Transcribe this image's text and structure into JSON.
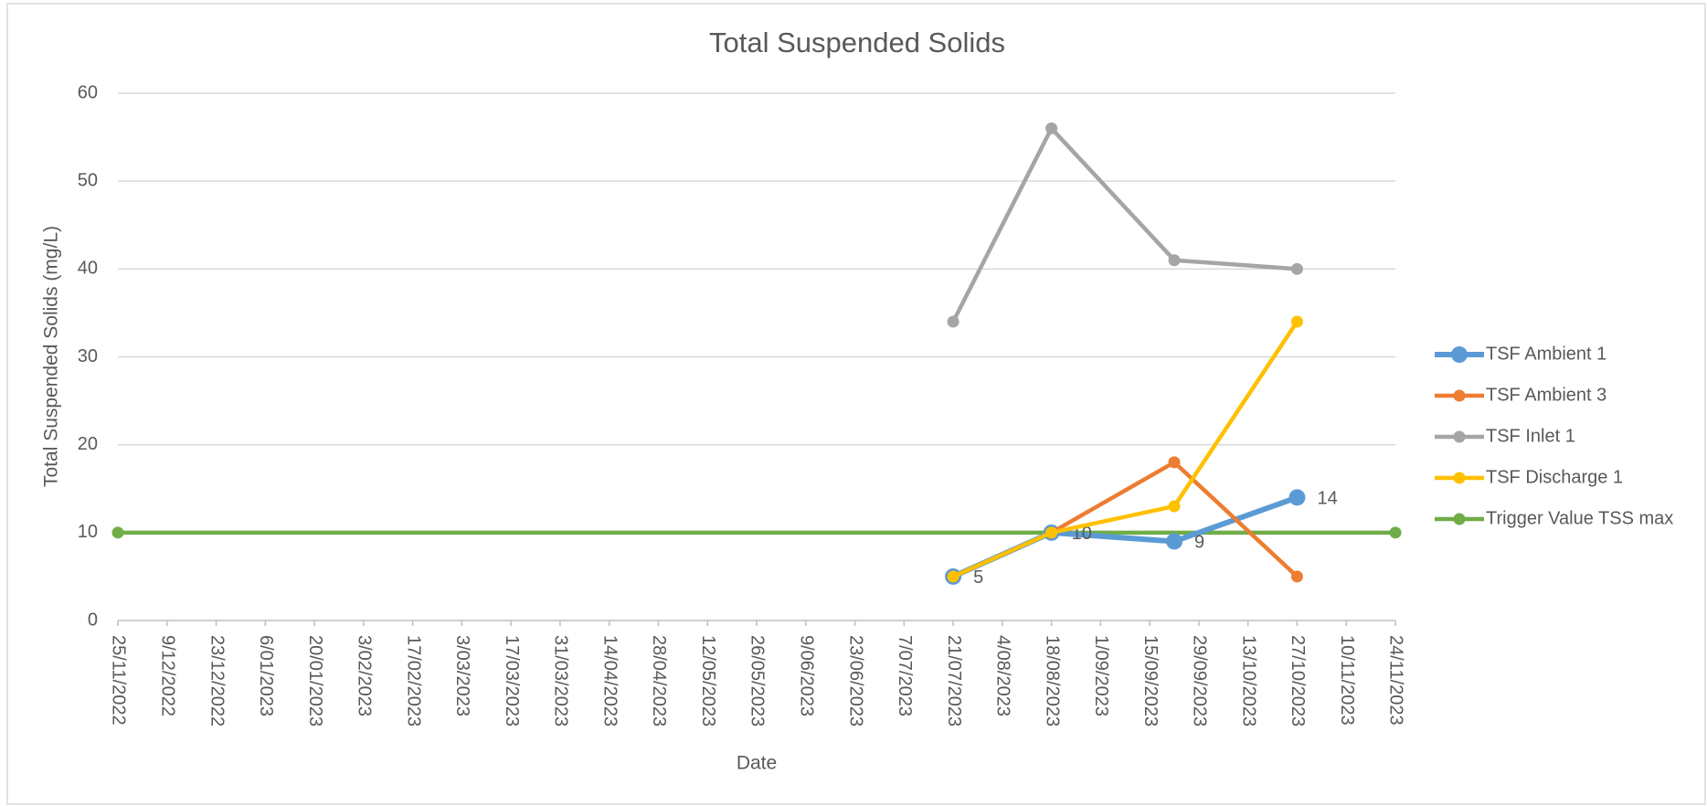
{
  "chart_data": {
    "type": "line",
    "title": "Total Suspended Solids",
    "xlabel": "Date",
    "ylabel": "Total Suspended Solids (mg/L)",
    "xlim": [
      "25/11/2022",
      "24/11/2023"
    ],
    "xticks": [
      "25/11/2022",
      "9/12/2022",
      "23/12/2022",
      "6/01/2023",
      "20/01/2023",
      "3/02/2023",
      "17/02/2023",
      "3/03/2023",
      "17/03/2023",
      "31/03/2023",
      "14/04/2023",
      "28/04/2023",
      "12/05/2023",
      "26/05/2023",
      "9/06/2023",
      "23/06/2023",
      "7/07/2023",
      "21/07/2023",
      "4/08/2023",
      "18/08/2023",
      "1/09/2023",
      "15/09/2023",
      "29/09/2023",
      "13/10/2023",
      "27/10/2023",
      "10/11/2023",
      "24/11/2023"
    ],
    "ylim": [
      0,
      60
    ],
    "yticks": [
      0,
      10,
      20,
      30,
      40,
      50,
      60
    ],
    "grid": true,
    "legend": "right",
    "series": [
      {
        "name": "TSF Ambient 1",
        "color": "#5b9bd5",
        "x": [
          "21/07/2023",
          "18/08/2023",
          "22/09/2023",
          "27/10/2023"
        ],
        "values": [
          5,
          10,
          9,
          14
        ],
        "data_labels": true
      },
      {
        "name": "TSF Ambient 3",
        "color": "#ed7d31",
        "x": [
          "18/08/2023",
          "22/09/2023",
          "27/10/2023"
        ],
        "values": [
          10,
          18,
          5
        ]
      },
      {
        "name": "TSF Inlet 1",
        "color": "#a5a5a5",
        "x": [
          "21/07/2023",
          "18/08/2023",
          "22/09/2023",
          "27/10/2023"
        ],
        "values": [
          34,
          56,
          41,
          40
        ]
      },
      {
        "name": "TSF Discharge 1",
        "color": "#ffc000",
        "x": [
          "21/07/2023",
          "18/08/2023",
          "22/09/2023",
          "27/10/2023"
        ],
        "values": [
          5,
          10,
          13,
          34
        ]
      },
      {
        "name": "Trigger Value TSS max",
        "color": "#70ad47",
        "x": [
          "25/11/2022",
          "24/11/2023"
        ],
        "values": [
          10,
          10
        ]
      }
    ]
  }
}
